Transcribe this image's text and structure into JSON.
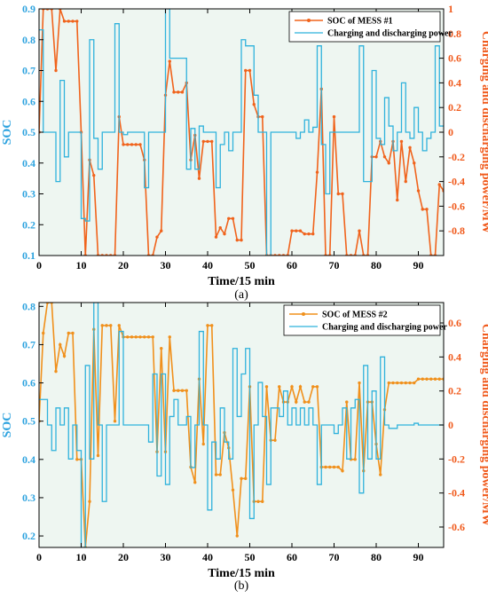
{
  "chart_data": [
    {
      "type": "line",
      "caption": "(a)",
      "xlabel": "Time/15 min",
      "ylabel_left": "SOC",
      "ylabel_right": "Charging and discharging power/MW",
      "xlim": [
        0,
        96
      ],
      "ylim_left": [
        0.1,
        0.9
      ],
      "ylim_right": [
        -1,
        1
      ],
      "xticks": [
        0,
        10,
        20,
        30,
        40,
        50,
        60,
        70,
        80,
        90
      ],
      "yticks_left": [
        0.1,
        0.2,
        0.3,
        0.4,
        0.5,
        0.6,
        0.7,
        0.8,
        0.9
      ],
      "yticks_right": [
        -0.8,
        -0.6,
        -0.4,
        -0.2,
        0,
        0.2,
        0.4,
        0.6,
        0.8,
        1
      ],
      "legend_position": "top-right",
      "background_color": "#eef6f1",
      "grid": false,
      "series": [
        {
          "name": "SOC of MESS #1",
          "axis": "left",
          "style": "line-marker",
          "color": "#f0631c",
          "x": [
            0,
            1,
            2,
            3,
            4,
            5,
            6,
            7,
            8,
            9,
            10,
            11,
            12,
            13,
            14,
            15,
            16,
            17,
            18,
            19,
            20,
            21,
            22,
            23,
            24,
            25,
            26,
            27,
            28,
            29,
            30,
            31,
            32,
            33,
            34,
            35,
            36,
            37,
            38,
            39,
            40,
            41,
            42,
            43,
            44,
            45,
            46,
            47,
            48,
            49,
            50,
            51,
            52,
            53,
            54,
            55,
            56,
            57,
            58,
            59,
            60,
            61,
            62,
            63,
            64,
            65,
            66,
            67,
            68,
            69,
            70,
            71,
            72,
            73,
            74,
            75,
            76,
            77,
            78,
            79,
            80,
            81,
            82,
            83,
            84,
            85,
            86,
            87,
            88,
            89,
            90,
            91,
            92,
            93,
            94,
            95,
            96
          ],
          "values": [
            0.5,
            0.9,
            0.9,
            0.9,
            0.7,
            0.9,
            0.86,
            0.86,
            0.86,
            0.86,
            0.5,
            0.1,
            0.41,
            0.36,
            0.1,
            0.1,
            0.1,
            0.1,
            0.1,
            0.55,
            0.46,
            0.46,
            0.46,
            0.46,
            0.46,
            0.41,
            0.1,
            0.1,
            0.16,
            0.18,
            0.62,
            0.73,
            0.63,
            0.63,
            0.63,
            0.66,
            0.41,
            0.49,
            0.35,
            0.47,
            0.47,
            0.47,
            0.16,
            0.19,
            0.17,
            0.22,
            0.22,
            0.15,
            0.15,
            0.7,
            0.7,
            0.59,
            0.55,
            0.55,
            0.1,
            0.1,
            0.1,
            0.1,
            0.1,
            0.1,
            0.18,
            0.18,
            0.18,
            0.17,
            0.17,
            0.17,
            0.37,
            0.64,
            0.1,
            0.1,
            0.55,
            0.3,
            0.3,
            0.1,
            0.1,
            0.1,
            0.18,
            0.1,
            0.1,
            0.42,
            0.42,
            0.47,
            0.42,
            0.4,
            0.47,
            0.28,
            0.47,
            0.34,
            0.45,
            0.4,
            0.31,
            0.25,
            0.25,
            0.1,
            0.1,
            0.33,
            0.31
          ]
        },
        {
          "name": "Charging and discharging power",
          "axis": "right",
          "style": "step",
          "color": "#2fb2dc",
          "x": [
            0,
            1,
            2,
            3,
            4,
            5,
            6,
            7,
            8,
            9,
            10,
            11,
            12,
            13,
            14,
            15,
            16,
            17,
            18,
            19,
            20,
            21,
            22,
            23,
            24,
            25,
            26,
            27,
            28,
            29,
            30,
            31,
            32,
            33,
            34,
            35,
            36,
            37,
            38,
            39,
            40,
            41,
            42,
            43,
            44,
            45,
            46,
            47,
            48,
            49,
            50,
            51,
            52,
            53,
            54,
            55,
            56,
            57,
            58,
            59,
            60,
            61,
            62,
            63,
            64,
            65,
            66,
            67,
            68,
            69,
            70,
            71,
            72,
            73,
            74,
            75,
            76,
            77,
            78,
            79,
            80,
            81,
            82,
            83,
            84,
            85,
            86,
            87,
            88,
            89,
            90,
            91,
            92,
            93,
            94,
            95
          ],
          "values": [
            0.83,
            0,
            0,
            0,
            -0.4,
            0.42,
            -0.2,
            0,
            0,
            0,
            -0.7,
            -0.72,
            0.75,
            -0.05,
            -0.3,
            0,
            0,
            0,
            0.88,
            0,
            -0.02,
            0,
            0,
            0,
            0,
            -0.45,
            0,
            0,
            0,
            0,
            1,
            0.6,
            0.6,
            0.6,
            0.6,
            -0.3,
            0.03,
            -0.3,
            0.05,
            0,
            0,
            0,
            -0.45,
            -0.1,
            0,
            -0.15,
            0,
            0,
            0.75,
            0.7,
            0.7,
            0.3,
            0,
            0,
            -1,
            0,
            0,
            0,
            0,
            0,
            0,
            -0.05,
            0,
            0.1,
            0,
            0.04,
            0.7,
            -0.1,
            -0.5,
            0,
            0,
            0,
            0,
            0,
            0,
            0,
            0.7,
            -0.4,
            -0.4,
            0.5,
            -0.05,
            -0.1,
            0.28,
            0.05,
            -0.15,
            0,
            0.4,
            0,
            -0.05,
            0.2,
            0,
            -0.15,
            -0.05,
            0,
            0.7,
            0.05
          ]
        }
      ]
    },
    {
      "type": "line",
      "caption": "(b)",
      "xlabel": "Time/15 min",
      "ylabel_left": "SOC",
      "ylabel_right": "Charging and discharging power/MW",
      "xlim": [
        0,
        96
      ],
      "ylim_left": [
        0.17,
        0.81
      ],
      "ylim_right": [
        -0.72,
        0.72
      ],
      "xticks": [
        0,
        10,
        20,
        30,
        40,
        50,
        60,
        70,
        80,
        90
      ],
      "yticks_left": [
        0.2,
        0.3,
        0.4,
        0.5,
        0.6,
        0.7,
        0.8
      ],
      "yticks_right": [
        -0.6,
        -0.4,
        -0.2,
        0,
        0.2,
        0.4,
        0.6
      ],
      "legend_position": "top-right",
      "background_color": "#eef6f1",
      "grid": false,
      "series": [
        {
          "name": "SOC of MESS #2",
          "axis": "left",
          "style": "line-marker",
          "color": "#f0901c",
          "x": [
            0,
            1,
            2,
            3,
            4,
            5,
            6,
            7,
            8,
            9,
            10,
            11,
            12,
            13,
            14,
            15,
            16,
            17,
            18,
            19,
            20,
            21,
            22,
            23,
            24,
            25,
            26,
            27,
            28,
            29,
            30,
            31,
            32,
            33,
            34,
            35,
            36,
            37,
            38,
            39,
            40,
            41,
            42,
            43,
            44,
            45,
            46,
            47,
            48,
            49,
            50,
            51,
            52,
            53,
            54,
            55,
            56,
            57,
            58,
            59,
            60,
            61,
            62,
            63,
            64,
            65,
            66,
            67,
            68,
            69,
            70,
            71,
            72,
            73,
            74,
            75,
            76,
            77,
            78,
            79,
            80,
            81,
            82,
            83,
            84,
            85,
            86,
            87,
            88,
            89,
            90,
            91,
            92,
            93,
            94,
            95,
            96
          ],
          "values": [
            0.5,
            0.73,
            0.81,
            0.81,
            0.63,
            0.7,
            0.67,
            0.73,
            0.73,
            0.4,
            0.4,
            0.17,
            0.29,
            0.74,
            0.41,
            0.75,
            0.75,
            0.75,
            0.5,
            0.75,
            0.72,
            0.72,
            0.72,
            0.72,
            0.72,
            0.72,
            0.72,
            0.72,
            0.42,
            0.69,
            0.42,
            0.72,
            0.58,
            0.58,
            0.58,
            0.58,
            0.38,
            0.34,
            0.61,
            0.44,
            0.75,
            0.75,
            0.36,
            0.36,
            0.47,
            0.43,
            0.32,
            0.2,
            0.35,
            0.35,
            0.59,
            0.29,
            0.29,
            0.29,
            0.59,
            0.45,
            0.45,
            0.59,
            0.55,
            0.55,
            0.59,
            0.55,
            0.59,
            0.55,
            0.55,
            0.59,
            0.59,
            0.38,
            0.38,
            0.38,
            0.38,
            0.38,
            0.37,
            0.55,
            0.4,
            0.4,
            0.6,
            0.37,
            0.55,
            0.55,
            0.44,
            0.36,
            0.53,
            0.6,
            0.6,
            0.6,
            0.6,
            0.6,
            0.6,
            0.6,
            0.61,
            0.61,
            0.61,
            0.61,
            0.61,
            0.61,
            0.61
          ]
        },
        {
          "name": "Charging and discharging power",
          "axis": "right",
          "style": "step",
          "color": "#2fb2dc",
          "x": [
            0,
            1,
            2,
            3,
            4,
            5,
            6,
            7,
            8,
            9,
            10,
            11,
            12,
            13,
            14,
            15,
            16,
            17,
            18,
            19,
            20,
            21,
            22,
            23,
            24,
            25,
            26,
            27,
            28,
            29,
            30,
            31,
            32,
            33,
            34,
            35,
            36,
            37,
            38,
            39,
            40,
            41,
            42,
            43,
            44,
            45,
            46,
            47,
            48,
            49,
            50,
            51,
            52,
            53,
            54,
            55,
            56,
            57,
            58,
            59,
            60,
            61,
            62,
            63,
            64,
            65,
            66,
            67,
            68,
            69,
            70,
            71,
            72,
            73,
            74,
            75,
            76,
            77,
            78,
            79,
            80,
            81,
            82,
            83,
            84,
            85,
            86,
            87,
            88,
            89,
            90,
            91,
            92,
            93,
            94,
            95
          ],
          "values": [
            0.15,
            0.15,
            0,
            -0.15,
            0.1,
            0,
            0.1,
            -0.2,
            0,
            -0.15,
            -0.72,
            0.35,
            -0.2,
            0.72,
            0,
            -0.45,
            0,
            0,
            0,
            0.55,
            0,
            0,
            0,
            0,
            0,
            0,
            -0.1,
            0.3,
            -0.3,
            0.3,
            -0.35,
            0.05,
            0.15,
            0,
            0,
            0.05,
            -0.25,
            0,
            0.55,
            0,
            -0.5,
            -0.1,
            -0.2,
            0.1,
            -0.1,
            -0.2,
            0.45,
            0.05,
            0.3,
            0.45,
            -0.55,
            0,
            0.25,
            0.05,
            -0.35,
            0.1,
            0.1,
            0.05,
            0.2,
            0,
            0.1,
            0,
            0.1,
            0,
            0.1,
            0,
            -0.35,
            0,
            0,
            0,
            -0.05,
            0,
            0.1,
            -0.2,
            0.1,
            0.15,
            -0.4,
            0.35,
            -0.2,
            0.2,
            -0.2,
            0.4,
            0,
            -0.02,
            -0.02,
            0,
            0,
            0,
            0,
            0.01,
            0,
            0,
            0,
            0,
            0,
            0
          ]
        }
      ]
    }
  ]
}
